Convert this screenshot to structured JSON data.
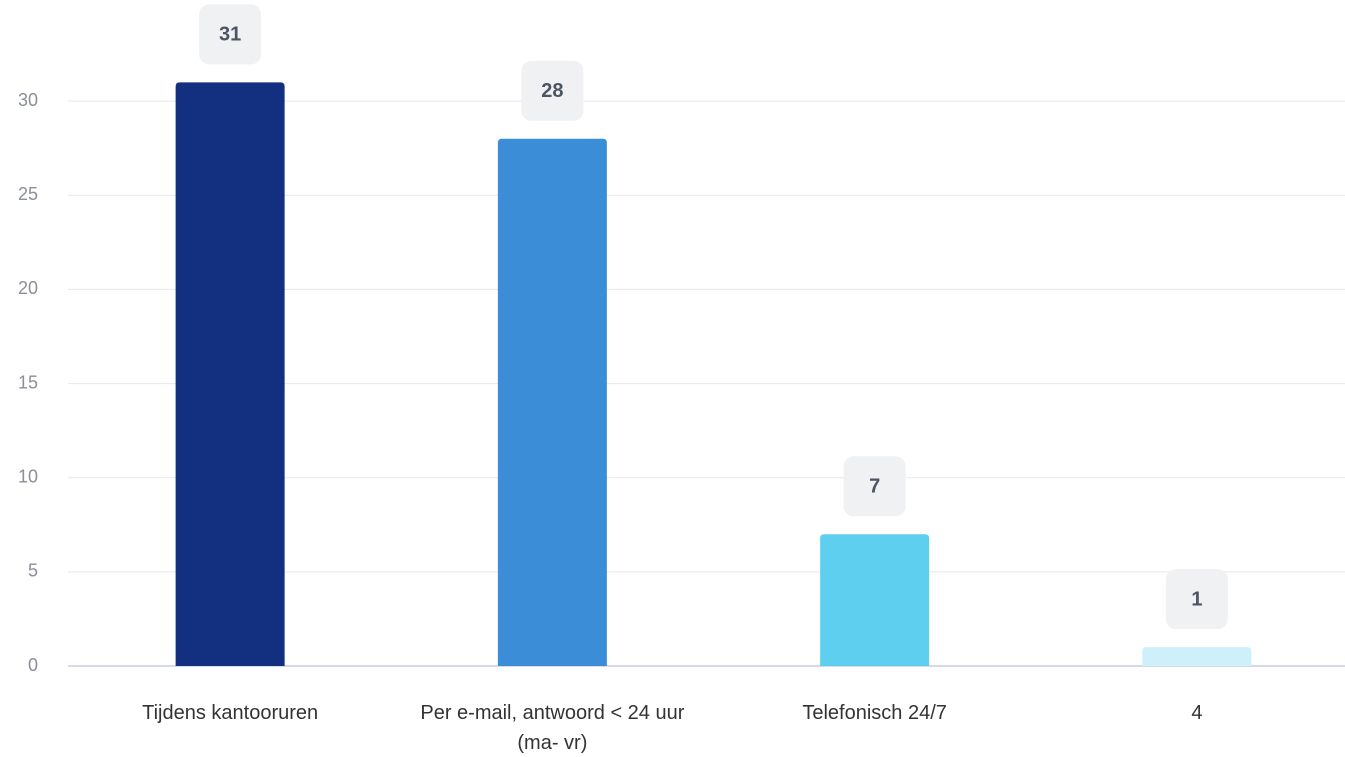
{
  "chart_data": {
    "type": "bar",
    "categories": [
      "Tijdens kantooruren",
      "Per e-mail, antwoord < 24 uur (ma- vr)",
      "Telefonisch 24/7",
      "4"
    ],
    "values": [
      31,
      28,
      7,
      1
    ],
    "colors": [
      "#132f80",
      "#3c8dd8",
      "#5fcff0",
      "#cdf0fa"
    ],
    "ylim": [
      0,
      35
    ],
    "yticks": [
      0,
      5,
      10,
      15,
      20,
      25,
      30
    ],
    "grid": true
  }
}
